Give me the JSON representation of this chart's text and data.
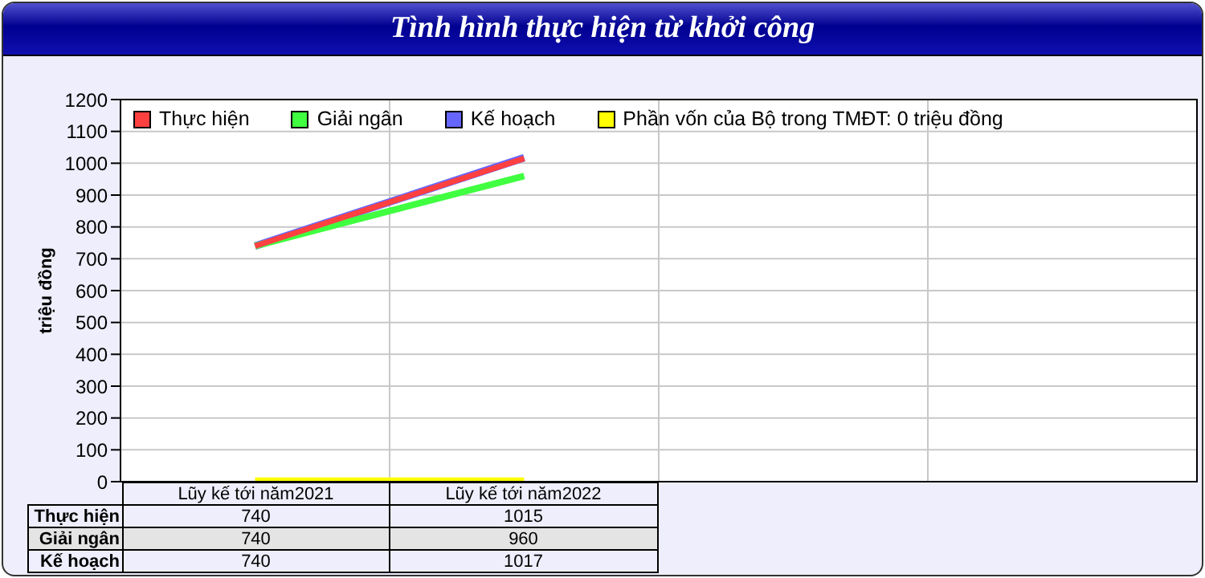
{
  "chart_data": {
    "type": "line",
    "title": "Tình hình thực hiện từ khởi công",
    "ylabel": "triệu đồng",
    "categories": [
      "Lũy kế tới năm2021",
      "Lũy kế tới năm2022",
      null,
      null
    ],
    "series": [
      {
        "name": "Thực hiện",
        "color": "#ff4040",
        "values": [
          740,
          1015,
          null,
          null
        ],
        "value_labels": [
          "740",
          "1015",
          null,
          null
        ]
      },
      {
        "name": "Giải ngân",
        "color": "#40ff40",
        "values": [
          740,
          960,
          null,
          null
        ],
        "value_labels": [
          "740",
          "960",
          null,
          null
        ]
      },
      {
        "name": "Kế hoạch",
        "color": "#6666ff",
        "values": [
          740,
          1017,
          null,
          null
        ],
        "value_labels": [
          "740",
          "1017",
          null,
          null
        ]
      },
      {
        "name": "Phần vốn của Bộ trong TMĐT: 0 triệu đồng",
        "color": "#ffff00",
        "values": [
          0,
          0,
          null,
          null
        ]
      }
    ],
    "ylim": [
      0,
      1200
    ],
    "yticks": [
      0,
      100,
      200,
      300,
      400,
      500,
      600,
      700,
      800,
      900,
      1000,
      1100,
      1200
    ],
    "grid": true,
    "legend": "top left",
    "line_style": "solid",
    "marker": "none"
  }
}
